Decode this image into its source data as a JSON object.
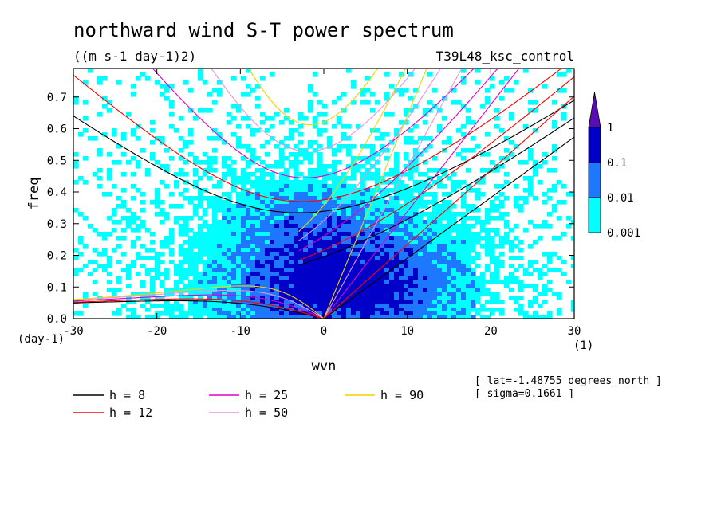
{
  "chart_data": {
    "type": "heatmap",
    "title": "northward wind S-T power spectrum",
    "subtitle": "((m s-1 day-1)2)",
    "run_label": "T39L48_ksc_control",
    "xlabel": "wvn",
    "ylabel": "freq",
    "x_unit": "(1)",
    "y_unit": "(day-1)",
    "xlim": [
      -30,
      30
    ],
    "ylim": [
      0,
      0.79
    ],
    "xticks": [
      -30,
      -20,
      -10,
      0,
      10,
      20,
      30
    ],
    "xtick_labels": [
      "-30",
      "-20",
      "-10",
      "0",
      "10",
      "20",
      "30"
    ],
    "yticks": [
      0,
      0.1,
      0.2,
      0.3,
      0.4,
      0.5,
      0.6,
      0.7
    ],
    "ytick_labels": [
      "0.0",
      "0.1",
      "0.2",
      "0.3",
      "0.4",
      "0.5",
      "0.6",
      "0.7"
    ],
    "colorbar": {
      "levels": [
        0.001,
        0.01,
        0.1,
        1
      ],
      "labels": [
        "0.001",
        "0.01",
        "0.1",
        "1"
      ],
      "colors": [
        "#00ffff",
        "#1e78ff",
        "#0000c8",
        "#5a0cb4"
      ]
    },
    "dispersion_curves": [
      {
        "label": "h =  8",
        "h": 8,
        "color": "#000000"
      },
      {
        "label": "h = 12",
        "h": 12,
        "color": "#ff0000"
      },
      {
        "label": "h = 25",
        "h": 25,
        "color": "#e000c8"
      },
      {
        "label": "h = 50",
        "h": 50,
        "color": "#e690e6"
      },
      {
        "label": "h = 90",
        "h": 90,
        "color": "#f0d200"
      }
    ],
    "annotations": [
      "[ lat=-1.48755 degrees_north ]",
      "[ sigma=0.1661 ]"
    ]
  }
}
